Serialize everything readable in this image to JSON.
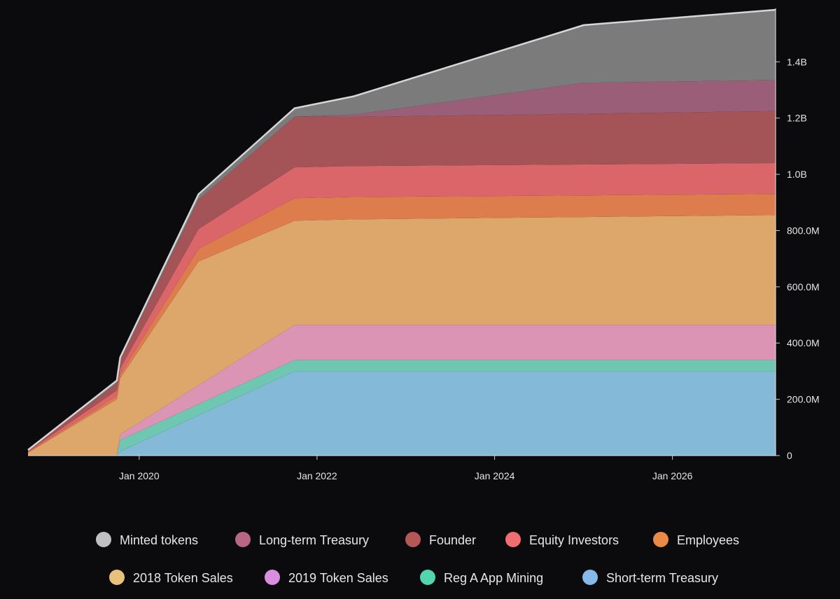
{
  "chart_data": {
    "type": "area",
    "stacked": true,
    "title": "",
    "xlabel": "",
    "ylabel": "",
    "x_range": [
      "2018-10-01",
      "2027-03-01"
    ],
    "ylim": [
      0,
      1590000000
    ],
    "grid": false,
    "legend_position": "bottom",
    "x_ticks": [
      {
        "date": "2020-01-01",
        "label": "Jan 2020"
      },
      {
        "date": "2022-01-01",
        "label": "Jan 2022"
      },
      {
        "date": "2024-01-01",
        "label": "Jan 2024"
      },
      {
        "date": "2026-01-01",
        "label": "Jan 2026"
      }
    ],
    "y_ticks": [
      {
        "value": 0,
        "label": "0"
      },
      {
        "value": 200000000,
        "label": "200.0M"
      },
      {
        "value": 400000000,
        "label": "400.0M"
      },
      {
        "value": 600000000,
        "label": "600.0M"
      },
      {
        "value": 800000000,
        "label": "800.0M"
      },
      {
        "value": 1000000000,
        "label": "1.0B"
      },
      {
        "value": 1200000000,
        "label": "1.2B"
      },
      {
        "value": 1400000000,
        "label": "1.4B"
      }
    ],
    "series": [
      {
        "name": "Short-term Treasury",
        "color": "#84bad7",
        "points": [
          [
            "2018-10-01",
            0
          ],
          [
            "2019-10-01",
            0
          ],
          [
            "2019-10-15",
            15000000
          ],
          [
            "2021-10-01",
            300000000
          ],
          [
            "2027-03-01",
            300000000
          ]
        ]
      },
      {
        "name": "Reg A App Mining",
        "color": "#6fc7b2",
        "points": [
          [
            "2018-10-01",
            0
          ],
          [
            "2019-10-01",
            0
          ],
          [
            "2019-10-15",
            40000000
          ],
          [
            "2021-10-01",
            40000000
          ],
          [
            "2027-03-01",
            40000000
          ]
        ]
      },
      {
        "name": "2019 Token Sales",
        "color": "#dc94b5",
        "points": [
          [
            "2018-10-01",
            0
          ],
          [
            "2019-10-01",
            0
          ],
          [
            "2019-10-15",
            20000000
          ],
          [
            "2021-10-01",
            125000000
          ],
          [
            "2027-03-01",
            125000000
          ]
        ]
      },
      {
        "name": "2018 Token Sales",
        "color": "#dda76c",
        "points": [
          [
            "2018-10-01",
            10000000
          ],
          [
            "2019-10-01",
            200000000
          ],
          [
            "2019-10-15",
            200000000
          ],
          [
            "2020-09-01",
            440000000
          ],
          [
            "2021-10-01",
            370000000
          ],
          [
            "2022-06-01",
            375000000
          ],
          [
            "2027-03-01",
            390000000
          ]
        ]
      },
      {
        "name": "Employees",
        "color": "#dd7c4c",
        "points": [
          [
            "2018-10-01",
            2000000
          ],
          [
            "2019-10-01",
            12000000
          ],
          [
            "2020-09-01",
            45000000
          ],
          [
            "2021-10-01",
            80000000
          ],
          [
            "2027-03-01",
            75000000
          ]
        ]
      },
      {
        "name": "Equity Investors",
        "color": "#db666a",
        "points": [
          [
            "2018-10-01",
            3000000
          ],
          [
            "2019-10-01",
            20000000
          ],
          [
            "2020-09-01",
            70000000
          ],
          [
            "2021-10-01",
            110000000
          ],
          [
            "2027-03-01",
            110000000
          ]
        ]
      },
      {
        "name": "Founder",
        "color": "#a45356",
        "points": [
          [
            "2018-10-01",
            5000000
          ],
          [
            "2019-10-01",
            25000000
          ],
          [
            "2020-09-01",
            105000000
          ],
          [
            "2021-10-01",
            180000000
          ],
          [
            "2022-06-01",
            175000000
          ],
          [
            "2027-03-01",
            185000000
          ]
        ]
      },
      {
        "name": "Long-term Treasury",
        "color": "#9a5e78",
        "points": [
          [
            "2018-10-01",
            0
          ],
          [
            "2021-10-01",
            0
          ],
          [
            "2022-06-01",
            8000000
          ],
          [
            "2025-01-01",
            110000000
          ],
          [
            "2027-03-01",
            110000000
          ]
        ]
      },
      {
        "name": "Minted tokens",
        "color": "#7b7b7b",
        "points": [
          [
            "2018-10-01",
            0
          ],
          [
            "2021-10-01",
            30000000
          ],
          [
            "2022-06-01",
            65000000
          ],
          [
            "2025-01-01",
            205000000
          ],
          [
            "2027-03-01",
            250000000
          ]
        ]
      }
    ],
    "legend_items": [
      {
        "name": "Minted tokens",
        "color": "#c0c0c0"
      },
      {
        "name": "Long-term Treasury",
        "color": "#b86682"
      },
      {
        "name": "Founder",
        "color": "#b65757"
      },
      {
        "name": "Equity Investors",
        "color": "#f06e72"
      },
      {
        "name": "Employees",
        "color": "#e98b46"
      },
      {
        "name": "2018 Token Sales",
        "color": "#e8c27d"
      },
      {
        "name": "2019 Token Sales",
        "color": "#d98ee0"
      },
      {
        "name": "Reg A App Mining",
        "color": "#52d4ad"
      },
      {
        "name": "Short-term Treasury",
        "color": "#86b8ea"
      }
    ]
  }
}
